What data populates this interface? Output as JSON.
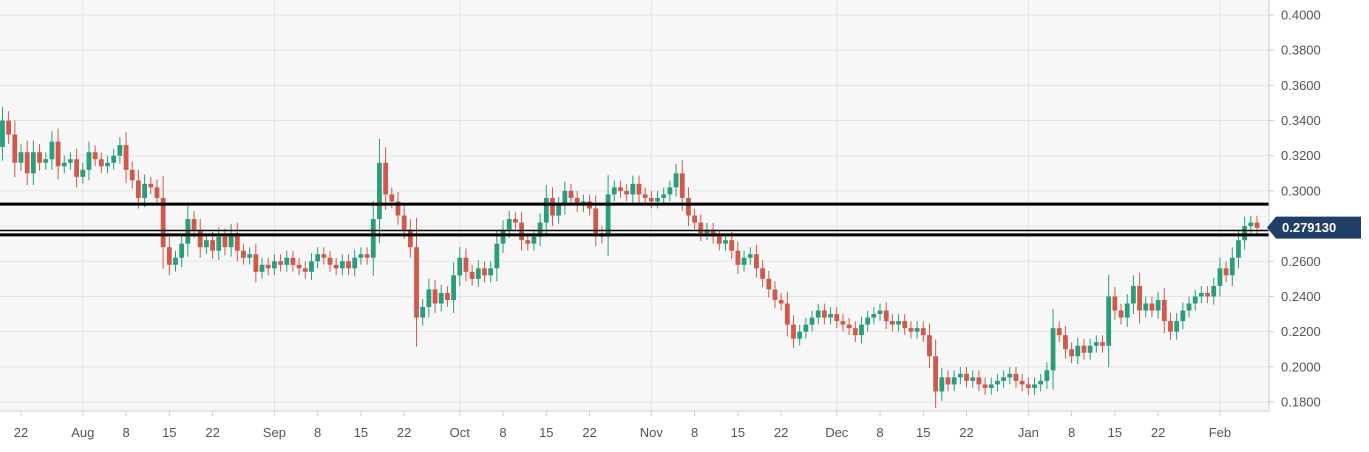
{
  "chart_data": {
    "type": "candlestick",
    "title": "",
    "xlabel": "",
    "ylabel": "",
    "ylim": [
      0.172,
      0.4075
    ],
    "y_ticks": [
      "0.4000",
      "0.3800",
      "0.3600",
      "0.3400",
      "0.3200",
      "0.3000",
      "0.2800",
      "0.2600",
      "0.2400",
      "0.2200",
      "0.2000",
      "0.1800"
    ],
    "x_ticks": [
      "22",
      "Aug",
      "8",
      "15",
      "22",
      "Sep",
      "8",
      "15",
      "22",
      "Oct",
      "8",
      "15",
      "22",
      "Nov",
      "8",
      "15",
      "22",
      "Dec",
      "8",
      "15",
      "22",
      "Jan",
      "8",
      "15",
      "22",
      "Feb"
    ],
    "x_tick_dates": [
      "2019-07-22",
      "2019-08-01",
      "2019-08-08",
      "2019-08-15",
      "2019-08-22",
      "2019-09-01",
      "2019-09-08",
      "2019-09-15",
      "2019-09-22",
      "2019-10-01",
      "2019-10-08",
      "2019-10-15",
      "2019-10-22",
      "2019-11-01",
      "2019-11-08",
      "2019-11-15",
      "2019-11-22",
      "2019-12-01",
      "2019-12-08",
      "2019-12-15",
      "2019-12-22",
      "2020-01-01",
      "2020-01-08",
      "2020-01-15",
      "2020-01-22",
      "2020-02-01"
    ],
    "grid": true,
    "current_price": "0.279130",
    "horizontal_lines": [
      0.2925,
      0.2775,
      0.275
    ],
    "colors": {
      "up": "#2a9d7c",
      "down": "#cf5a4c",
      "line": "#000000",
      "badge": "#1f3f66",
      "grid": "#e4e4e4"
    },
    "series": [
      {
        "closes": [
          [
            "2019-07-18",
            0.325
          ],
          [
            "2019-07-19",
            0.34
          ],
          [
            "2019-07-20",
            0.332
          ],
          [
            "2019-07-21",
            0.316
          ],
          [
            "2019-07-22",
            0.322
          ],
          [
            "2019-07-23",
            0.31
          ],
          [
            "2019-07-24",
            0.322
          ],
          [
            "2019-07-25",
            0.316
          ],
          [
            "2019-07-26",
            0.318
          ],
          [
            "2019-07-27",
            0.328
          ],
          [
            "2019-07-28",
            0.314
          ],
          [
            "2019-07-29",
            0.316
          ],
          [
            "2019-07-30",
            0.318
          ],
          [
            "2019-07-31",
            0.308
          ],
          [
            "2019-08-01",
            0.312
          ],
          [
            "2019-08-02",
            0.322
          ],
          [
            "2019-08-03",
            0.318
          ],
          [
            "2019-08-04",
            0.314
          ],
          [
            "2019-08-05",
            0.316
          ],
          [
            "2019-08-06",
            0.32
          ],
          [
            "2019-08-07",
            0.326
          ],
          [
            "2019-08-08",
            0.312
          ],
          [
            "2019-08-09",
            0.306
          ],
          [
            "2019-08-10",
            0.296
          ],
          [
            "2019-08-11",
            0.304
          ],
          [
            "2019-08-12",
            0.302
          ],
          [
            "2019-08-13",
            0.296
          ],
          [
            "2019-08-14",
            0.268
          ],
          [
            "2019-08-15",
            0.258
          ],
          [
            "2019-08-16",
            0.262
          ],
          [
            "2019-08-17",
            0.27
          ],
          [
            "2019-08-18",
            0.284
          ],
          [
            "2019-08-19",
            0.278
          ],
          [
            "2019-08-20",
            0.268
          ],
          [
            "2019-08-21",
            0.272
          ],
          [
            "2019-08-22",
            0.266
          ],
          [
            "2019-08-23",
            0.274
          ],
          [
            "2019-08-24",
            0.268
          ],
          [
            "2019-08-25",
            0.276
          ],
          [
            "2019-08-26",
            0.266
          ],
          [
            "2019-08-27",
            0.262
          ],
          [
            "2019-08-28",
            0.264
          ],
          [
            "2019-08-29",
            0.254
          ],
          [
            "2019-08-30",
            0.258
          ],
          [
            "2019-08-31",
            0.256
          ],
          [
            "2019-09-01",
            0.26
          ],
          [
            "2019-09-02",
            0.258
          ],
          [
            "2019-09-03",
            0.262
          ],
          [
            "2019-09-04",
            0.258
          ],
          [
            "2019-09-05",
            0.256
          ],
          [
            "2019-09-06",
            0.254
          ],
          [
            "2019-09-07",
            0.26
          ],
          [
            "2019-09-08",
            0.264
          ],
          [
            "2019-09-09",
            0.262
          ],
          [
            "2019-09-10",
            0.258
          ],
          [
            "2019-09-11",
            0.256
          ],
          [
            "2019-09-12",
            0.26
          ],
          [
            "2019-09-13",
            0.256
          ],
          [
            "2019-09-14",
            0.262
          ],
          [
            "2019-09-15",
            0.264
          ],
          [
            "2019-09-16",
            0.262
          ],
          [
            "2019-09-17",
            0.284
          ],
          [
            "2019-09-18",
            0.316
          ],
          [
            "2019-09-19",
            0.298
          ],
          [
            "2019-09-20",
            0.294
          ],
          [
            "2019-09-21",
            0.286
          ],
          [
            "2019-09-22",
            0.278
          ],
          [
            "2019-09-23",
            0.268
          ],
          [
            "2019-09-24",
            0.228
          ],
          [
            "2019-09-25",
            0.234
          ],
          [
            "2019-09-26",
            0.244
          ],
          [
            "2019-09-27",
            0.236
          ],
          [
            "2019-09-28",
            0.242
          ],
          [
            "2019-09-29",
            0.238
          ],
          [
            "2019-09-30",
            0.252
          ],
          [
            "2019-10-01",
            0.262
          ],
          [
            "2019-10-02",
            0.254
          ],
          [
            "2019-10-03",
            0.25
          ],
          [
            "2019-10-04",
            0.256
          ],
          [
            "2019-10-05",
            0.252
          ],
          [
            "2019-10-06",
            0.256
          ],
          [
            "2019-10-07",
            0.27
          ],
          [
            "2019-10-08",
            0.278
          ],
          [
            "2019-10-09",
            0.284
          ],
          [
            "2019-10-10",
            0.282
          ],
          [
            "2019-10-11",
            0.272
          ],
          [
            "2019-10-12",
            0.27
          ],
          [
            "2019-10-13",
            0.274
          ],
          [
            "2019-10-14",
            0.282
          ],
          [
            "2019-10-15",
            0.296
          ],
          [
            "2019-10-16",
            0.286
          ],
          [
            "2019-10-17",
            0.292
          ],
          [
            "2019-10-18",
            0.3
          ],
          [
            "2019-10-19",
            0.296
          ],
          [
            "2019-10-20",
            0.292
          ],
          [
            "2019-10-21",
            0.294
          ],
          [
            "2019-10-22",
            0.29
          ],
          [
            "2019-10-23",
            0.276
          ],
          [
            "2019-10-24",
            0.274
          ],
          [
            "2019-10-25",
            0.298
          ],
          [
            "2019-10-26",
            0.302
          ],
          [
            "2019-10-27",
            0.3
          ],
          [
            "2019-10-28",
            0.298
          ],
          [
            "2019-10-29",
            0.304
          ],
          [
            "2019-10-30",
            0.298
          ],
          [
            "2019-10-31",
            0.296
          ],
          [
            "2019-11-01",
            0.294
          ],
          [
            "2019-11-02",
            0.296
          ],
          [
            "2019-11-03",
            0.298
          ],
          [
            "2019-11-04",
            0.302
          ],
          [
            "2019-11-05",
            0.31
          ],
          [
            "2019-11-06",
            0.296
          ],
          [
            "2019-11-07",
            0.286
          ],
          [
            "2019-11-08",
            0.282
          ],
          [
            "2019-11-09",
            0.276
          ],
          [
            "2019-11-10",
            0.278
          ],
          [
            "2019-11-11",
            0.274
          ],
          [
            "2019-11-12",
            0.27
          ],
          [
            "2019-11-13",
            0.272
          ],
          [
            "2019-11-14",
            0.266
          ],
          [
            "2019-11-15",
            0.258
          ],
          [
            "2019-11-16",
            0.262
          ],
          [
            "2019-11-17",
            0.264
          ],
          [
            "2019-11-18",
            0.256
          ],
          [
            "2019-11-19",
            0.25
          ],
          [
            "2019-11-20",
            0.244
          ],
          [
            "2019-11-21",
            0.238
          ],
          [
            "2019-11-22",
            0.236
          ],
          [
            "2019-11-23",
            0.224
          ],
          [
            "2019-11-24",
            0.216
          ],
          [
            "2019-11-25",
            0.22
          ],
          [
            "2019-11-26",
            0.224
          ],
          [
            "2019-11-27",
            0.228
          ],
          [
            "2019-11-28",
            0.232
          ],
          [
            "2019-11-29",
            0.228
          ],
          [
            "2019-11-30",
            0.23
          ],
          [
            "2019-12-01",
            0.226
          ],
          [
            "2019-12-02",
            0.224
          ],
          [
            "2019-12-03",
            0.222
          ],
          [
            "2019-12-04",
            0.218
          ],
          [
            "2019-12-05",
            0.224
          ],
          [
            "2019-12-06",
            0.228
          ],
          [
            "2019-12-07",
            0.23
          ],
          [
            "2019-12-08",
            0.232
          ],
          [
            "2019-12-09",
            0.226
          ],
          [
            "2019-12-10",
            0.224
          ],
          [
            "2019-12-11",
            0.226
          ],
          [
            "2019-12-12",
            0.222
          ],
          [
            "2019-12-13",
            0.22
          ],
          [
            "2019-12-14",
            0.222
          ],
          [
            "2019-12-15",
            0.218
          ],
          [
            "2019-12-16",
            0.206
          ],
          [
            "2019-12-17",
            0.186
          ],
          [
            "2019-12-18",
            0.194
          ],
          [
            "2019-12-19",
            0.19
          ],
          [
            "2019-12-20",
            0.194
          ],
          [
            "2019-12-21",
            0.196
          ],
          [
            "2019-12-22",
            0.192
          ],
          [
            "2019-12-23",
            0.194
          ],
          [
            "2019-12-24",
            0.19
          ],
          [
            "2019-12-25",
            0.188
          ],
          [
            "2019-12-26",
            0.19
          ],
          [
            "2019-12-27",
            0.192
          ],
          [
            "2019-12-28",
            0.194
          ],
          [
            "2019-12-29",
            0.196
          ],
          [
            "2019-12-30",
            0.192
          ],
          [
            "2019-12-31",
            0.19
          ],
          [
            "2020-01-01",
            0.188
          ],
          [
            "2020-01-02",
            0.19
          ],
          [
            "2020-01-03",
            0.192
          ],
          [
            "2020-01-04",
            0.198
          ],
          [
            "2020-01-05",
            0.222
          ],
          [
            "2020-01-06",
            0.218
          ],
          [
            "2020-01-07",
            0.21
          ],
          [
            "2020-01-08",
            0.206
          ],
          [
            "2020-01-09",
            0.212
          ],
          [
            "2020-01-10",
            0.208
          ],
          [
            "2020-01-11",
            0.212
          ],
          [
            "2020-01-12",
            0.214
          ],
          [
            "2020-01-13",
            0.212
          ],
          [
            "2020-01-14",
            0.24
          ],
          [
            "2020-01-15",
            0.232
          ],
          [
            "2020-01-16",
            0.228
          ],
          [
            "2020-01-17",
            0.236
          ],
          [
            "2020-01-18",
            0.246
          ],
          [
            "2020-01-19",
            0.232
          ],
          [
            "2020-01-20",
            0.236
          ],
          [
            "2020-01-21",
            0.232
          ],
          [
            "2020-01-22",
            0.238
          ],
          [
            "2020-01-23",
            0.226
          ],
          [
            "2020-01-24",
            0.22
          ],
          [
            "2020-01-25",
            0.226
          ],
          [
            "2020-01-26",
            0.232
          ],
          [
            "2020-01-27",
            0.236
          ],
          [
            "2020-01-28",
            0.24
          ],
          [
            "2020-01-29",
            0.242
          ],
          [
            "2020-01-30",
            0.24
          ],
          [
            "2020-01-31",
            0.246
          ],
          [
            "2020-02-01",
            0.256
          ],
          [
            "2020-02-02",
            0.252
          ],
          [
            "2020-02-03",
            0.262
          ],
          [
            "2020-02-04",
            0.272
          ],
          [
            "2020-02-05",
            0.28
          ],
          [
            "2020-02-06",
            0.282
          ],
          [
            "2020-02-07",
            0.279
          ]
        ]
      }
    ]
  }
}
